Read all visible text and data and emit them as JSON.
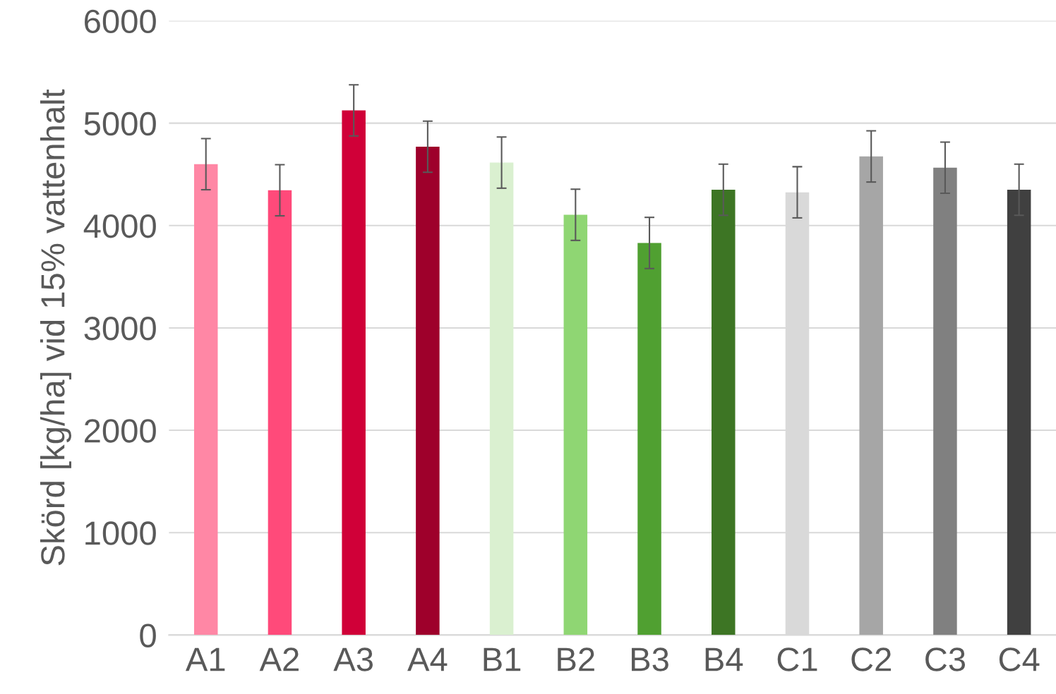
{
  "chart_data": {
    "type": "bar",
    "ylabel": "Skörd [kg/ha] vid 15% vattenhalt",
    "categories": [
      "A1",
      "A2",
      "A3",
      "A4",
      "B1",
      "B2",
      "B3",
      "B4",
      "C1",
      "C2",
      "C3",
      "C4"
    ],
    "values": [
      4600,
      4345,
      5125,
      4770,
      4615,
      4105,
      3830,
      4350,
      4325,
      4675,
      4565,
      4350
    ],
    "errors": [
      250,
      250,
      250,
      250,
      250,
      250,
      250,
      250,
      250,
      250,
      250,
      250
    ],
    "colors": [
      "#ff87a5",
      "#ff4a7a",
      "#d00038",
      "#9e002b",
      "#daf0d0",
      "#8fd673",
      "#50a031",
      "#3d7524",
      "#d9d9d9",
      "#a6a6a6",
      "#808080",
      "#404040"
    ],
    "ylim": [
      0,
      6000
    ],
    "yticks": [
      0,
      1000,
      2000,
      3000,
      4000,
      5000,
      6000
    ],
    "grid": "y"
  }
}
